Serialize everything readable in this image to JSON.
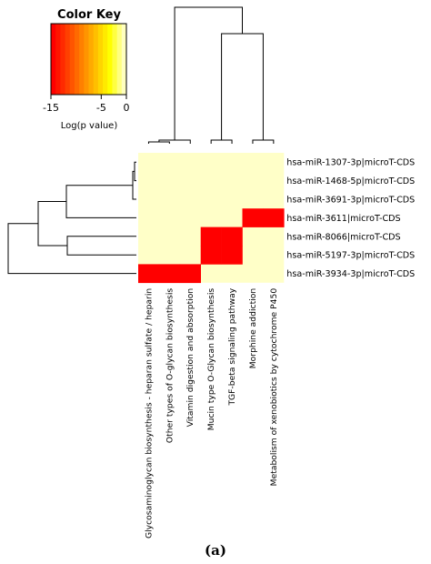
{
  "chart_data": {
    "type": "heatmap",
    "colorkey": {
      "title": "Color Key",
      "xlabel": "Log(p value)",
      "range": [
        -15,
        0
      ],
      "ticks": [
        -15,
        -5,
        0
      ],
      "tick_labels": [
        "-15",
        "-5",
        "0"
      ],
      "colors": [
        "#ff0000",
        "#ff1500",
        "#ff2a00",
        "#ff4000",
        "#ff5500",
        "#ff6a00",
        "#ff8000",
        "#ff9500",
        "#ffaa00",
        "#ffbf00",
        "#ffd500",
        "#ffea00",
        "#ffff00",
        "#ffff40",
        "#ffff80",
        "#ffffbf"
      ]
    },
    "rows": [
      "hsa-miR-1307-3p|microT-CDS",
      "hsa-miR-1468-5p|microT-CDS",
      "hsa-miR-3691-3p|microT-CDS",
      "hsa-miR-3611|microT-CDS",
      "hsa-miR-8066|microT-CDS",
      "hsa-miR-5197-3p|microT-CDS",
      "hsa-miR-3934-3p|microT-CDS"
    ],
    "columns": [
      "Glycosaminoglycan biosynthesis - heparan sulfate / heparin",
      "Other types of O-glycan biosynthesis",
      "Vitamin digestion and absorption",
      "Mucin type O-Glycan biosynthesis",
      "TGF-beta signaling pathway",
      "Morphine addiction",
      "Metabolism of xenobiotics by cytochrome P450"
    ],
    "values": [
      [
        0,
        0,
        0,
        0,
        0,
        0,
        0
      ],
      [
        0,
        0,
        0,
        0,
        0,
        0,
        0
      ],
      [
        0,
        0,
        0,
        0,
        0,
        0,
        0
      ],
      [
        0,
        0,
        0,
        0,
        0,
        -15,
        -15
      ],
      [
        0,
        0,
        0,
        -15,
        -15,
        0,
        0
      ],
      [
        0,
        0,
        0,
        -15,
        -15,
        0,
        0
      ],
      [
        -15,
        -15,
        -15,
        0,
        0,
        0,
        0
      ]
    ],
    "colors": {
      "significant": "#ff0000",
      "nonsignificant": "#ffffc8"
    }
  },
  "caption": "(a)"
}
